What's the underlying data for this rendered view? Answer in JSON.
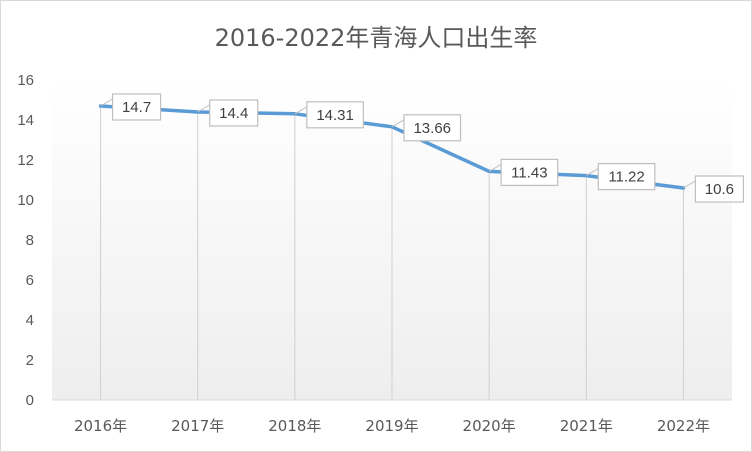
{
  "chart_data": {
    "type": "line",
    "title": "2016-2022年青海人口出生率",
    "categories": [
      "2016年",
      "2017年",
      "2018年",
      "2019年",
      "2020年",
      "2021年",
      "2022年"
    ],
    "series": [
      {
        "values": [
          14.7,
          14.4,
          14.31,
          13.66,
          11.43,
          11.22,
          10.6
        ],
        "labels": [
          "14.7",
          "14.4",
          "14.31",
          "13.66",
          "11.43",
          "11.22",
          "10.6"
        ],
        "color": "#5b9bd5"
      }
    ],
    "ylim": [
      0,
      16
    ],
    "yticks": [
      "0",
      "2",
      "4",
      "6",
      "8",
      "10",
      "12",
      "14",
      "16"
    ],
    "grid": "vertical drop lines",
    "legend": "none"
  }
}
